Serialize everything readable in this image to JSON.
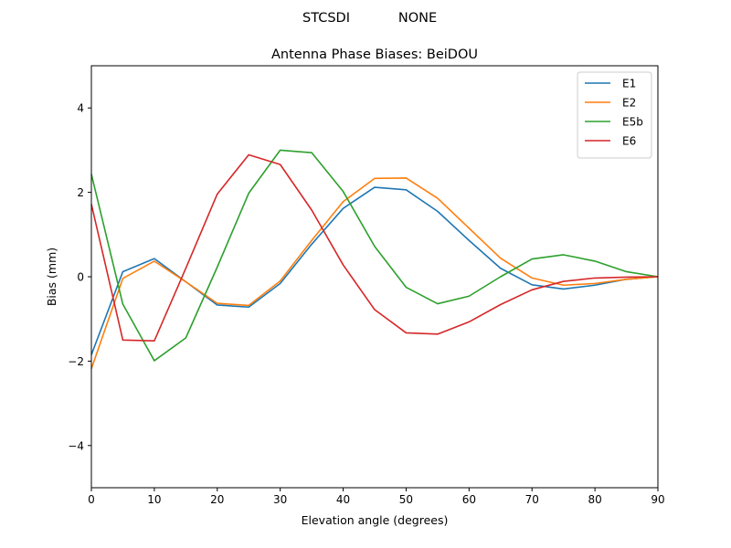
{
  "header": {
    "station": "STCSDI",
    "radome": "NONE"
  },
  "chart_data": {
    "type": "line",
    "title": "Antenna Phase Biases: BeiDOU",
    "xlabel": "Elevation angle (degrees)",
    "ylabel": "Bias (mm)",
    "xlim": [
      0,
      90
    ],
    "ylim": [
      -5,
      5
    ],
    "xticks": [
      0,
      10,
      20,
      30,
      40,
      50,
      60,
      70,
      80,
      90
    ],
    "xtick_labels": [
      "0",
      "10",
      "20",
      "30",
      "40",
      "50",
      "60",
      "70",
      "80",
      "90"
    ],
    "yticks": [
      -4,
      -2,
      0,
      2,
      4
    ],
    "ytick_labels": [
      "−4",
      "−2",
      "0",
      "2",
      "4"
    ],
    "grid": false,
    "legend_position": "top-right",
    "x": [
      0,
      5,
      10,
      15,
      20,
      25,
      30,
      35,
      40,
      45,
      50,
      55,
      60,
      65,
      70,
      75,
      80,
      85,
      90
    ],
    "series": [
      {
        "name": "E1",
        "color": "#1f77b4",
        "values": [
          -1.85,
          0.12,
          0.43,
          -0.12,
          -0.67,
          -0.72,
          -0.16,
          0.77,
          1.62,
          2.12,
          2.06,
          1.55,
          0.86,
          0.2,
          -0.19,
          -0.29,
          -0.2,
          -0.06,
          0.0
        ]
      },
      {
        "name": "E2",
        "color": "#ff7f0e",
        "values": [
          -2.18,
          -0.04,
          0.37,
          -0.12,
          -0.63,
          -0.68,
          -0.1,
          0.86,
          1.78,
          2.33,
          2.34,
          1.86,
          1.15,
          0.44,
          -0.03,
          -0.2,
          -0.16,
          -0.06,
          0.0
        ]
      },
      {
        "name": "E5b",
        "color": "#2ca02c",
        "values": [
          2.43,
          -0.65,
          -1.99,
          -1.45,
          0.23,
          1.98,
          3.0,
          2.94,
          2.02,
          0.72,
          -0.25,
          -0.64,
          -0.46,
          0.0,
          0.42,
          0.52,
          0.37,
          0.12,
          0.0
        ]
      },
      {
        "name": "E6",
        "color": "#d62728",
        "values": [
          1.72,
          -1.5,
          -1.52,
          0.2,
          1.96,
          2.89,
          2.66,
          1.58,
          0.28,
          -0.78,
          -1.33,
          -1.36,
          -1.07,
          -0.66,
          -0.31,
          -0.11,
          -0.03,
          -0.01,
          0.0
        ]
      }
    ]
  }
}
